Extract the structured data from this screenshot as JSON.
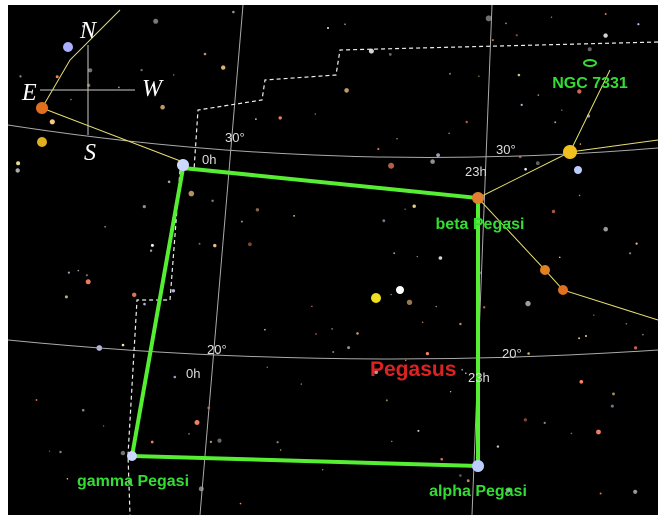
{
  "compass": {
    "north": "N",
    "east": "E",
    "west": "W",
    "south": "S"
  },
  "grid_labels": [
    "30°",
    "0h",
    "23h",
    "30°",
    "20°",
    "0h",
    "20°",
    "23h"
  ],
  "objects": {
    "ngc": "NGC 7331",
    "beta": "beta Pegasi",
    "alpha": "alpha Pegasi",
    "gamma": "gamma Pegasi"
  },
  "constellation": "Pegasus"
}
